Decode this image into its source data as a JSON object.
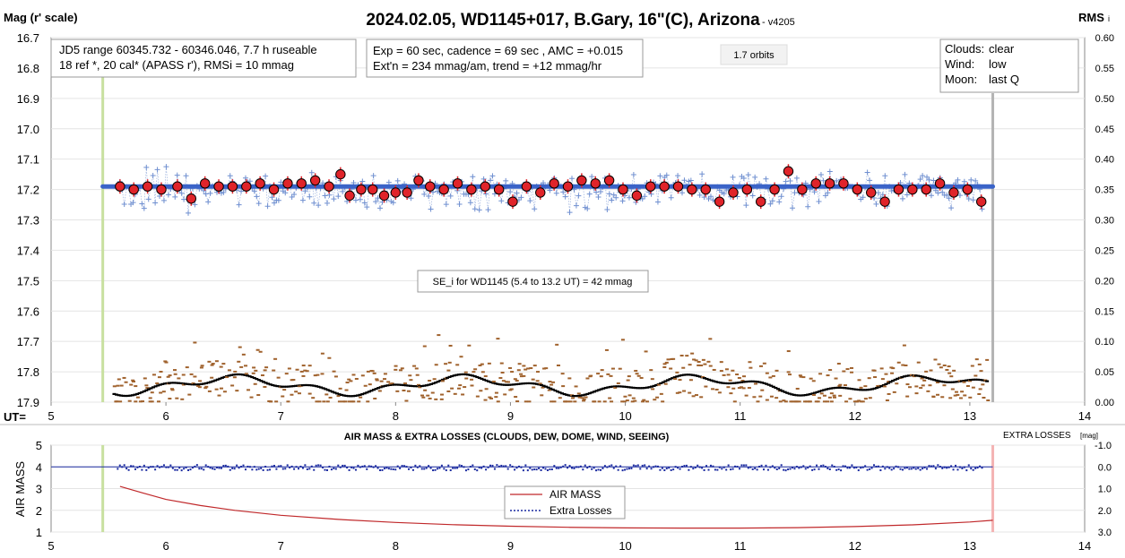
{
  "header": {
    "title": "2024.02.05, WD1145+017, B.Gary, 16\"(C), Arizona",
    "version": "- v4205",
    "left_axis_title": "Mag (r' scale)",
    "right_axis_title": "RMS",
    "right_axis_sub": "i",
    "ut_label": "UT="
  },
  "info": {
    "jd_line1": "JD5 range 60345.732 - 60346.046, 7.7 h ruseable",
    "jd_line2": "18 ref *, 20 cal*  (APASS r'), RMSi = 10 mmag",
    "exp_line1": "Exp = 60 sec, cadence = 69 sec , AMC = +0.015",
    "exp_line2": "Ext'n = 234 mmag/am, trend = +12 mmag/hr",
    "orbits": "1.7 orbits",
    "clouds_label": "Clouds:",
    "clouds_value": "clear",
    "wind_label": "Wind:",
    "wind_value": "low",
    "moon_label": "Moon:",
    "moon_value": "last Q",
    "se_note": "SE_i for WD1145 (5.4 to 13.2 UT) = 42 mmag"
  },
  "colors": {
    "model_line": "#3a63c8",
    "cross": "#6f8fd0",
    "circle_fill": "#e0242a",
    "rms_brown": "#a0622d",
    "rms_black": "#000000",
    "airmass": "#c0282a",
    "extra_losses": "#1a2aa0",
    "start_line": "#c8e0a0",
    "end_line_top": "#b4b4b4",
    "end_line_bottom": "#f4b4b4"
  },
  "chart_data": [
    {
      "type": "scatter",
      "title": "2024.02.05, WD1145+017, B.Gary, 16\"(C), Arizona",
      "xlabel": "UT=",
      "ylabel": "Mag (r' scale)",
      "y2label": "RMS i",
      "xlim": [
        5,
        14
      ],
      "ylim": [
        17.9,
        16.7
      ],
      "y2lim": [
        0.0,
        0.6
      ],
      "x_ticks": [
        5,
        6,
        7,
        8,
        9,
        10,
        11,
        12,
        13,
        14
      ],
      "y_ticks": [
        16.7,
        16.8,
        16.9,
        17.0,
        17.1,
        17.2,
        17.3,
        17.4,
        17.5,
        17.6,
        17.7,
        17.8,
        17.9
      ],
      "y_tick_labels": [
        "16.7",
        "16.8",
        "16.9",
        "17.0",
        "17.1",
        "17.2",
        "17.3",
        "17.4",
        "17.5",
        "17.6",
        "17.7",
        "17.8",
        "17.9"
      ],
      "y2_ticks": [
        "0.60",
        "0.55",
        "0.50",
        "0.45",
        "0.40",
        "0.35",
        "0.30",
        "0.25",
        "0.20",
        "0.15",
        "0.10",
        "0.05",
        "0.00"
      ],
      "model_line": {
        "x": [
          5.45,
          13.2
        ],
        "y": [
          17.19,
          17.19
        ]
      },
      "vertical_markers": {
        "start": 5.45,
        "end": 13.2
      },
      "binned_points": {
        "x": [
          5.6,
          5.72,
          5.84,
          5.96,
          6.1,
          6.22,
          6.34,
          6.46,
          6.58,
          6.7,
          6.82,
          6.94,
          7.06,
          7.18,
          7.3,
          7.42,
          7.52,
          7.6,
          7.7,
          7.8,
          7.9,
          8.0,
          8.1,
          8.2,
          8.3,
          8.42,
          8.54,
          8.66,
          8.78,
          8.9,
          9.02,
          9.14,
          9.26,
          9.38,
          9.5,
          9.62,
          9.74,
          9.86,
          9.98,
          10.1,
          10.22,
          10.34,
          10.46,
          10.58,
          10.7,
          10.82,
          10.94,
          11.06,
          11.18,
          11.3,
          11.42,
          11.54,
          11.66,
          11.78,
          11.9,
          12.02,
          12.14,
          12.26,
          12.38,
          12.5,
          12.62,
          12.74,
          12.86,
          12.98,
          13.1
        ],
        "y": [
          17.19,
          17.2,
          17.19,
          17.2,
          17.19,
          17.23,
          17.18,
          17.19,
          17.19,
          17.19,
          17.18,
          17.2,
          17.18,
          17.18,
          17.17,
          17.19,
          17.15,
          17.22,
          17.2,
          17.2,
          17.22,
          17.21,
          17.21,
          17.17,
          17.19,
          17.2,
          17.18,
          17.2,
          17.19,
          17.2,
          17.24,
          17.19,
          17.21,
          17.18,
          17.19,
          17.17,
          17.18,
          17.17,
          17.2,
          17.22,
          17.19,
          17.19,
          17.19,
          17.2,
          17.2,
          17.24,
          17.21,
          17.2,
          17.24,
          17.2,
          17.14,
          17.2,
          17.18,
          17.18,
          17.18,
          17.2,
          17.21,
          17.24,
          17.2,
          17.2,
          17.2,
          17.18,
          17.21,
          17.2,
          17.24
        ]
      },
      "raw_points_note": "individual measurements shown as blue crosses scattered ~17.10–17.30 mag",
      "rms_series_note": "RMS i per point: brown dashes 0.00–0.12, black running mean ~0.02–0.05"
    },
    {
      "type": "line",
      "title": "AIR MASS & EXTRA LOSSES (CLOUDS, DEW, DOME, WIND, SEEING)",
      "ylabel": "AIR MASS",
      "y2label": "EXTRA LOSSES",
      "y2label_unit": "[mag]",
      "xlim": [
        5,
        14
      ],
      "ylim": [
        1,
        5
      ],
      "y2lim": [
        3.0,
        -1.0
      ],
      "x_ticks": [
        5,
        6,
        7,
        8,
        9,
        10,
        11,
        12,
        13,
        14
      ],
      "y_ticks": [
        1,
        2,
        3,
        4,
        5
      ],
      "y2_ticks": [
        "-1.0",
        "0.0",
        "1.0",
        "2.0",
        "3.0"
      ],
      "legend": [
        "AIR MASS",
        "Extra Losses"
      ],
      "series": [
        {
          "name": "AIR MASS",
          "x": [
            5.6,
            5.8,
            6.0,
            6.3,
            6.6,
            7.0,
            7.5,
            8.0,
            8.5,
            9.0,
            9.5,
            10.0,
            10.5,
            11.0,
            11.5,
            12.0,
            12.5,
            13.0,
            13.2
          ],
          "y": [
            3.1,
            2.8,
            2.5,
            2.22,
            2.0,
            1.77,
            1.58,
            1.44,
            1.34,
            1.27,
            1.22,
            1.19,
            1.18,
            1.18,
            1.2,
            1.25,
            1.33,
            1.46,
            1.54
          ]
        },
        {
          "name": "Extra Losses",
          "x": [
            5.6,
            13.2
          ],
          "y": [
            0.0,
            0.0
          ]
        }
      ]
    }
  ]
}
